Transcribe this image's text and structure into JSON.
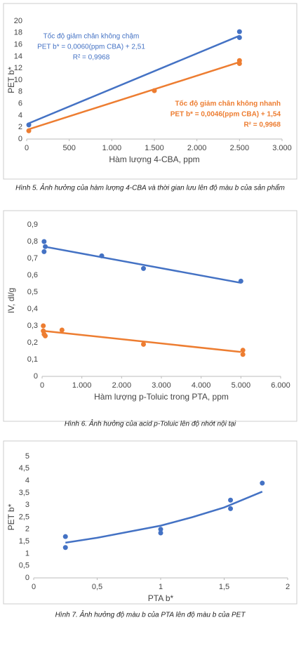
{
  "chart_data": [
    {
      "type": "scatter",
      "caption": "Hình 5. Ảnh hưởng của hàm lượng 4-CBA và thời gian lưu lên độ màu b của sản phẩm",
      "xlabel": "Hàm lượng 4-CBA, ppm",
      "ylabel": "PET b*",
      "xlim": [
        0,
        3000
      ],
      "ylim": [
        0,
        20
      ],
      "xticks": [
        0,
        {
          "value": 500,
          "label": "500"
        },
        {
          "value": 1000,
          "label": "1.000"
        },
        {
          "value": 1500,
          "label": "1.500"
        },
        {
          "value": 2000,
          "label": "2.000"
        },
        {
          "value": 2500,
          "label": "2.500"
        },
        {
          "value": 3000,
          "label": "3.000"
        }
      ],
      "yticks": [
        0,
        2,
        4,
        6,
        8,
        10,
        12,
        14,
        16,
        18,
        20
      ],
      "series": [
        {
          "color": "#4472c4",
          "x": [
            25,
            2500,
            2500
          ],
          "values": [
            2.4,
            18.2,
            17.2
          ],
          "trend_x": [
            25,
            2500
          ],
          "trend_values": [
            2.66,
            17.51
          ]
        },
        {
          "color": "#ed7d31",
          "x": [
            25,
            1500,
            2500,
            2500
          ],
          "values": [
            1.4,
            8.2,
            13.3,
            12.8
          ],
          "trend_x": [
            25,
            2500
          ],
          "trend_values": [
            1.66,
            13.04
          ]
        }
      ],
      "annotations": [
        {
          "color": "#4472c4",
          "lines": [
            "Tốc độ giảm chân không chậm",
            "PET b* = 0,0060(ppm CBA) + 2,51",
            "R² = 0,9968"
          ]
        },
        {
          "color": "#ed7d31",
          "lines": [
            "Tốc độ giảm chân không nhanh",
            "PET b* = 0,0046(ppm CBA) + 1,54",
            "R² = 0,9968"
          ]
        }
      ]
    },
    {
      "type": "scatter",
      "caption": "Hình 6. Ảnh hưởng của acid p-Toluic lên độ nhớt nội tại",
      "xlabel": "Hàm lượng p-Toluic trong PTA, ppm",
      "ylabel": "IV, dl/g",
      "xlim": [
        0,
        6000
      ],
      "ylim": [
        0,
        0.9
      ],
      "xticks": [
        0,
        {
          "value": 1000,
          "label": "1.000"
        },
        {
          "value": 2000,
          "label": "2.000"
        },
        {
          "value": 3000,
          "label": "3.000"
        },
        {
          "value": 4000,
          "label": "4.000"
        },
        {
          "value": 5000,
          "label": "5.000"
        },
        {
          "value": 6000,
          "label": "6.000"
        }
      ],
      "yticks": [
        0,
        {
          "value": 0.1,
          "label": "0,1"
        },
        {
          "value": 0.2,
          "label": "0,2"
        },
        {
          "value": 0.3,
          "label": "0,3"
        },
        {
          "value": 0.4,
          "label": "0,4"
        },
        {
          "value": 0.5,
          "label": "0,5"
        },
        {
          "value": 0.6,
          "label": "0,6"
        },
        {
          "value": 0.7,
          "label": "0,7"
        },
        {
          "value": 0.8,
          "label": "0,8"
        },
        {
          "value": 0.9,
          "label": "0,9"
        }
      ],
      "series": [
        {
          "color": "#4472c4",
          "x": [
            50,
            50,
            80,
            1500,
            2550,
            5000
          ],
          "values": [
            0.74,
            0.8,
            0.77,
            0.715,
            0.64,
            0.565
          ],
          "trend_x": [
            50,
            5000
          ],
          "trend_values": [
            0.77,
            0.555
          ]
        },
        {
          "color": "#ed7d31",
          "x": [
            30,
            30,
            50,
            80,
            500,
            2550,
            5050,
            5050
          ],
          "values": [
            0.3,
            0.27,
            0.25,
            0.24,
            0.275,
            0.19,
            0.155,
            0.13
          ],
          "trend_x": [
            30,
            5000
          ],
          "trend_values": [
            0.27,
            0.145
          ]
        }
      ]
    },
    {
      "type": "scatter",
      "caption": "Hình 7. Ảnh hưởng độ màu b của PTA lên độ màu b của PET",
      "xlabel": "PTA b*",
      "ylabel": "PET b*",
      "xlim": [
        0,
        2
      ],
      "ylim": [
        0,
        5
      ],
      "xticks": [
        0,
        {
          "value": 0.5,
          "label": "0,5"
        },
        1,
        {
          "value": 1.5,
          "label": "1,5"
        },
        2
      ],
      "yticks": [
        0,
        {
          "value": 0.5,
          "label": "0,5"
        },
        1,
        {
          "value": 1.5,
          "label": "1,5"
        },
        2,
        {
          "value": 2.5,
          "label": "2,5"
        },
        3,
        {
          "value": 3.5,
          "label": "3,5"
        },
        4,
        {
          "value": 4.5,
          "label": "4,5"
        },
        5
      ],
      "series": [
        {
          "color": "#4472c4",
          "x": [
            0.25,
            0.25,
            1,
            1,
            1.55,
            1.55,
            1.8
          ],
          "values": [
            1.7,
            1.25,
            2,
            1.85,
            3.2,
            2.85,
            3.9
          ],
          "trend_x": [
            0.25,
            0.5,
            0.75,
            1,
            1.25,
            1.5,
            1.8
          ],
          "trend_values": [
            1.45,
            1.65,
            1.9,
            2.15,
            2.5,
            2.9,
            3.55
          ]
        }
      ]
    }
  ]
}
